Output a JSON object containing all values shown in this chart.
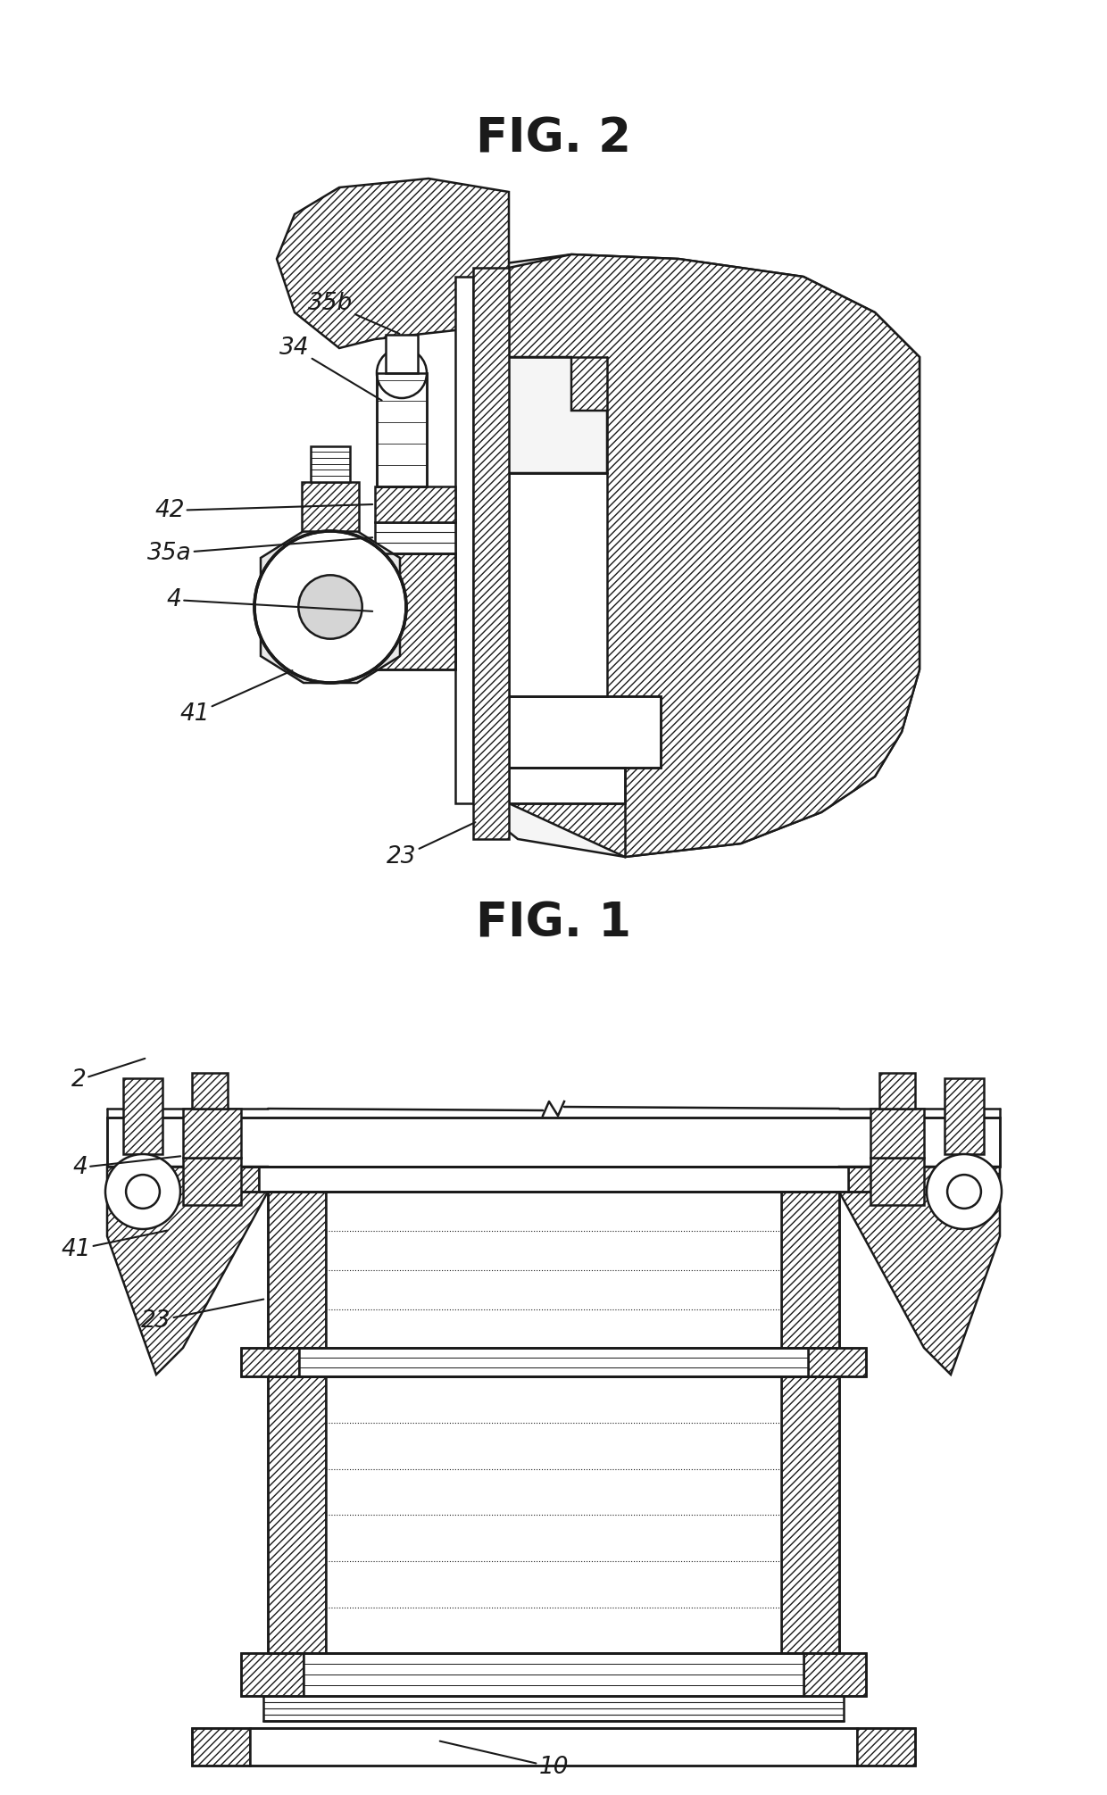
{
  "fig_width": 12.4,
  "fig_height": 20.11,
  "dpi": 100,
  "bg": "#ffffff",
  "lc": "#1a1a1a",
  "lw": 1.8,
  "fig1_label": "FIG. 1",
  "fig2_label": "FIG. 2"
}
